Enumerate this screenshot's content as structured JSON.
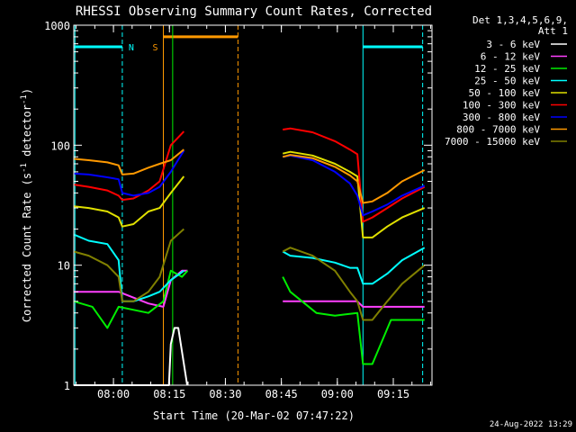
{
  "chart_data": {
    "type": "line",
    "title": "RHESSI Observing Summary Count Rates, Corrected",
    "xlabel": "Start Time (20-Mar-02 07:47:22)",
    "ylabel_main": "Corrected Count Rate (s",
    "ylabel_sup1": "-1",
    "ylabel_mid": " detector",
    "ylabel_sup2": "-1",
    "ylabel_end": ")",
    "x_unit": "minutes since 07:47:22",
    "xlim": [
      0,
      96
    ],
    "ylim": [
      1,
      1000
    ],
    "yscale": "log",
    "x_ticks": [
      {
        "value": 10.63,
        "label": "08:00"
      },
      {
        "value": 25.63,
        "label": "08:15"
      },
      {
        "value": 40.63,
        "label": "08:30"
      },
      {
        "value": 55.63,
        "label": "08:45"
      },
      {
        "value": 70.63,
        "label": "09:00"
      },
      {
        "value": 85.63,
        "label": "09:15"
      }
    ],
    "y_ticks": [
      {
        "value": 1,
        "label": "1"
      },
      {
        "value": 10,
        "label": "10"
      },
      {
        "value": 100,
        "label": "100"
      },
      {
        "value": 1000,
        "label": "1000"
      }
    ],
    "legend_header": [
      "Det 1,3,4,5,6,9,",
      "Att 1"
    ],
    "legend_placement": "right",
    "series": [
      {
        "name": "3 - 6 keV",
        "color": "#ffffff",
        "x": [
          0,
          1,
          25.5,
          26,
          27,
          28,
          30.4
        ],
        "y": [
          1,
          1,
          1,
          2.2,
          3,
          3,
          1
        ]
      },
      {
        "name": "6 - 12 keV",
        "color": "#ff40ff",
        "x": [
          0,
          12,
          20,
          24,
          26,
          29,
          30.5,
          40,
          56,
          65,
          76,
          77.5,
          94
        ],
        "y": [
          6,
          6,
          4.8,
          4.5,
          7.5,
          9,
          9,
          null,
          5,
          5,
          5,
          4.5,
          4.5
        ]
      },
      {
        "name": "12 - 25 keV",
        "color": "#00ee00",
        "x": [
          0,
          5,
          9,
          12,
          20,
          24,
          26,
          29,
          30.5,
          40,
          56,
          58,
          65,
          70,
          76,
          77.5,
          80,
          85,
          94
        ],
        "y": [
          5,
          4.5,
          3,
          4.5,
          4,
          5,
          9,
          8,
          9,
          null,
          8,
          6,
          4,
          3.8,
          4,
          1.5,
          1.5,
          3.5,
          3.5
        ]
      },
      {
        "name": "25 - 50 keV",
        "color": "#00ffff",
        "x": [
          0,
          4,
          9,
          12,
          13,
          16,
          20,
          23,
          26,
          29.5,
          40,
          56,
          58,
          64,
          70,
          74,
          76,
          77.5,
          80,
          84,
          88,
          94
        ],
        "y": [
          18,
          16,
          15,
          11,
          5,
          5,
          5.5,
          6,
          7.5,
          9,
          null,
          13,
          12,
          11.5,
          10.5,
          9.5,
          9.5,
          7,
          7,
          8.5,
          11,
          14
        ]
      },
      {
        "name": "50 - 100 keV",
        "color": "#e0e000",
        "x": [
          0,
          4,
          9,
          12,
          13,
          16,
          20,
          23,
          26,
          29.5,
          40,
          56,
          58,
          64,
          70,
          74,
          76,
          77.5,
          80,
          84,
          88,
          94
        ],
        "y": [
          31,
          30,
          28,
          25,
          21,
          22,
          28,
          30,
          40,
          55,
          null,
          85,
          88,
          82,
          70,
          60,
          55,
          17,
          17,
          21,
          25,
          30
        ]
      },
      {
        "name": "100 - 300 keV",
        "color": "#ff0000",
        "x": [
          0,
          4,
          9,
          12,
          13,
          16,
          20,
          23,
          26,
          29.5,
          40,
          56,
          58,
          64,
          70,
          74,
          76,
          77.5,
          80,
          84,
          88,
          94
        ],
        "y": [
          47,
          45,
          42,
          38,
          35,
          36,
          42,
          50,
          100,
          130,
          null,
          135,
          138,
          128,
          108,
          92,
          84,
          23,
          25,
          30,
          36,
          45
        ]
      },
      {
        "name": "300 - 800 keV",
        "color": "#0000ff",
        "x": [
          0,
          4,
          9,
          12,
          13,
          16,
          20,
          23,
          26,
          29.5,
          40,
          56,
          58,
          64,
          70,
          74,
          76,
          77.5,
          80,
          84,
          88,
          94
        ],
        "y": [
          58,
          57,
          54,
          52,
          40,
          38,
          40,
          45,
          60,
          90,
          null,
          80,
          82,
          75,
          60,
          48,
          38,
          26,
          28,
          32,
          38,
          46
        ]
      },
      {
        "name": "800 - 7000 keV",
        "color": "#ff9900",
        "x": [
          0,
          4,
          9,
          12,
          13,
          16,
          20,
          23,
          26,
          29.5,
          40,
          56,
          58,
          64,
          70,
          74,
          76,
          77.5,
          80,
          84,
          88,
          94
        ],
        "y": [
          77,
          75,
          72,
          68,
          57,
          58,
          65,
          70,
          75,
          92,
          null,
          80,
          83,
          78,
          66,
          56,
          50,
          33,
          34,
          40,
          50,
          62
        ]
      },
      {
        "name": "7000 - 15000 keV",
        "color": "#808000",
        "x": [
          0,
          4,
          9,
          12,
          13,
          16,
          20,
          23,
          26,
          29.5,
          40,
          56,
          58,
          64,
          70,
          74,
          76,
          77.5,
          80,
          84,
          88,
          94
        ],
        "y": [
          13,
          12,
          10,
          8,
          5,
          5,
          6,
          8,
          16,
          20,
          null,
          13,
          14,
          12,
          9,
          6,
          5,
          3.5,
          3.5,
          5,
          7,
          10
        ]
      }
    ],
    "annotations": {
      "night_text": "N",
      "saa_text": "S",
      "footer_date": "24-Aug-2022 13:29"
    }
  }
}
